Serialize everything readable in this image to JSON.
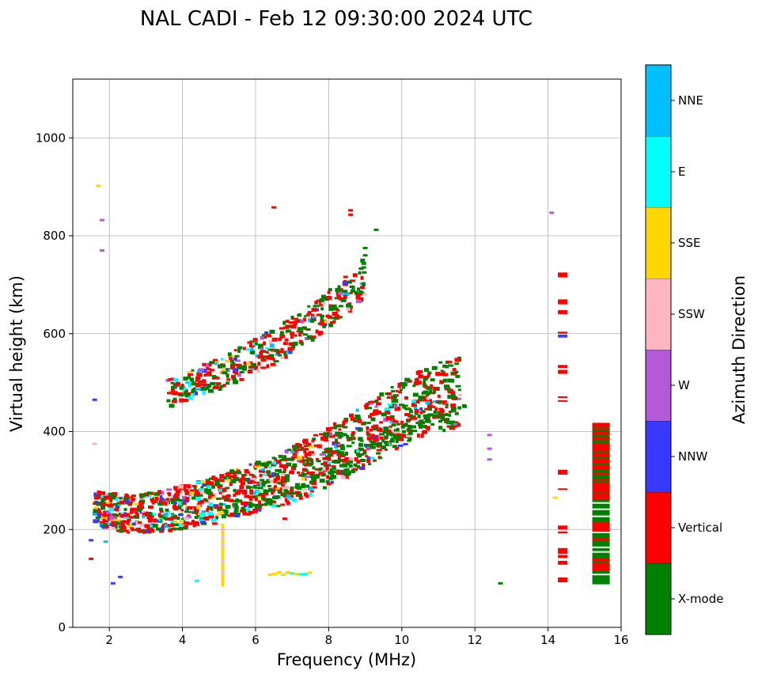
{
  "chart_data": {
    "type": "scatter",
    "title": "NAL CADI - Feb 12 09:30:00 2024 UTC",
    "xlabel": "Frequency (MHz)",
    "ylabel": "Virtual height (km)",
    "xlim": [
      1.0,
      16.0
    ],
    "ylim": [
      0,
      1120
    ],
    "xticks": [
      2,
      4,
      6,
      8,
      10,
      12,
      14,
      16
    ],
    "yticks": [
      0,
      200,
      400,
      600,
      800,
      1000
    ],
    "grid": true,
    "colorbar": {
      "label": "Azimuth Direction",
      "categories": [
        {
          "name": "X-mode",
          "color": "#008000"
        },
        {
          "name": "Vertical",
          "color": "#ff0000"
        },
        {
          "name": "NNW",
          "color": "#3838ff"
        },
        {
          "name": "W",
          "color": "#b45ad6"
        },
        {
          "name": "SSW",
          "color": "#ffb6c1"
        },
        {
          "name": "SSE",
          "color": "#ffd700"
        },
        {
          "name": "E",
          "color": "#00ffff"
        },
        {
          "name": "NNE",
          "color": "#00bfff"
        }
      ]
    },
    "lower_trace": [
      [
        1.6,
        245
      ],
      [
        1.8,
        238
      ],
      [
        2.0,
        236
      ],
      [
        2.3,
        234
      ],
      [
        2.6,
        233
      ],
      [
        2.9,
        234
      ],
      [
        3.2,
        236
      ],
      [
        3.5,
        239
      ],
      [
        3.8,
        243
      ],
      [
        4.1,
        247
      ],
      [
        4.4,
        252
      ],
      [
        4.7,
        257
      ],
      [
        5.0,
        262
      ],
      [
        5.3,
        268
      ],
      [
        5.6,
        275
      ],
      [
        5.9,
        282
      ],
      [
        6.2,
        289
      ],
      [
        6.5,
        297
      ],
      [
        6.8,
        306
      ],
      [
        7.1,
        315
      ],
      [
        7.4,
        325
      ],
      [
        7.7,
        336
      ],
      [
        8.0,
        348
      ],
      [
        8.3,
        360
      ],
      [
        8.6,
        373
      ],
      [
        8.9,
        387
      ],
      [
        9.2,
        401
      ],
      [
        9.5,
        415
      ],
      [
        9.8,
        428
      ],
      [
        10.1,
        440
      ],
      [
        10.4,
        451
      ],
      [
        10.7,
        461
      ],
      [
        11.0,
        469
      ],
      [
        11.3,
        476
      ],
      [
        11.6,
        480
      ]
    ],
    "upper_trace": [
      [
        3.6,
        478
      ],
      [
        3.9,
        486
      ],
      [
        4.2,
        494
      ],
      [
        4.5,
        503
      ],
      [
        4.8,
        512
      ],
      [
        5.1,
        522
      ],
      [
        5.4,
        532
      ],
      [
        5.7,
        543
      ],
      [
        6.0,
        554
      ],
      [
        6.3,
        566
      ],
      [
        6.6,
        578
      ],
      [
        6.9,
        591
      ],
      [
        7.2,
        605
      ],
      [
        7.5,
        620
      ],
      [
        7.8,
        636
      ],
      [
        8.1,
        654
      ],
      [
        8.4,
        672
      ],
      [
        8.7,
        692
      ],
      [
        9.0,
        715
      ]
    ],
    "outliers": [
      [
        6.5,
        858,
        "Vertical"
      ],
      [
        8.6,
        852,
        "Vertical"
      ],
      [
        8.6,
        843,
        "Vertical"
      ],
      [
        9.3,
        812,
        "X-mode"
      ],
      [
        9.0,
        775,
        "X-mode"
      ],
      [
        9.0,
        760,
        "X-mode"
      ],
      [
        14.1,
        847,
        "W"
      ],
      [
        1.7,
        902,
        "SSE"
      ],
      [
        1.8,
        832,
        "W"
      ],
      [
        1.8,
        770,
        "W"
      ],
      [
        1.6,
        465,
        "NNW"
      ],
      [
        1.6,
        375,
        "SSW"
      ],
      [
        12.4,
        393,
        "W"
      ],
      [
        12.4,
        365,
        "W"
      ],
      [
        12.4,
        343,
        "W"
      ],
      [
        12.7,
        90,
        "X-mode"
      ],
      [
        14.2,
        265,
        "SSE"
      ],
      [
        2.3,
        103,
        "NNW"
      ],
      [
        2.1,
        90,
        "NNW"
      ],
      [
        4.4,
        95,
        "E"
      ],
      [
        6.8,
        222,
        "Vertical"
      ],
      [
        1.9,
        175,
        "NNE"
      ],
      [
        1.5,
        178,
        "NNW"
      ],
      [
        1.5,
        140,
        "Vertical"
      ]
    ],
    "column_14_4": {
      "x": 14.4,
      "blocks": [
        [
          715,
          725,
          "Vertical"
        ],
        [
          660,
          670,
          "Vertical"
        ],
        [
          640,
          648,
          "Vertical"
        ],
        [
          600,
          604,
          "Vertical"
        ],
        [
          592,
          598,
          "NNW"
        ],
        [
          530,
          536,
          "Vertical"
        ],
        [
          518,
          526,
          "Vertical"
        ],
        [
          470,
          472,
          "Vertical"
        ],
        [
          462,
          464,
          "Vertical"
        ],
        [
          312,
          322,
          "Vertical"
        ],
        [
          282,
          284,
          "Vertical"
        ],
        [
          200,
          208,
          "Vertical"
        ],
        [
          192,
          196,
          "Vertical"
        ],
        [
          150,
          162,
          "Vertical"
        ],
        [
          142,
          148,
          "Vertical"
        ],
        [
          128,
          136,
          "Vertical"
        ],
        [
          92,
          102,
          "Vertical"
        ]
      ]
    },
    "column_15_5": {
      "x": 15.45,
      "ymin": 88,
      "ymax": 415
    },
    "column_5_1": {
      "x": 5.1,
      "ymin": 88,
      "ymax": 215
    },
    "strip_7_0": {
      "y": 110,
      "xmin": 6.4,
      "xmax": 7.5
    }
  }
}
